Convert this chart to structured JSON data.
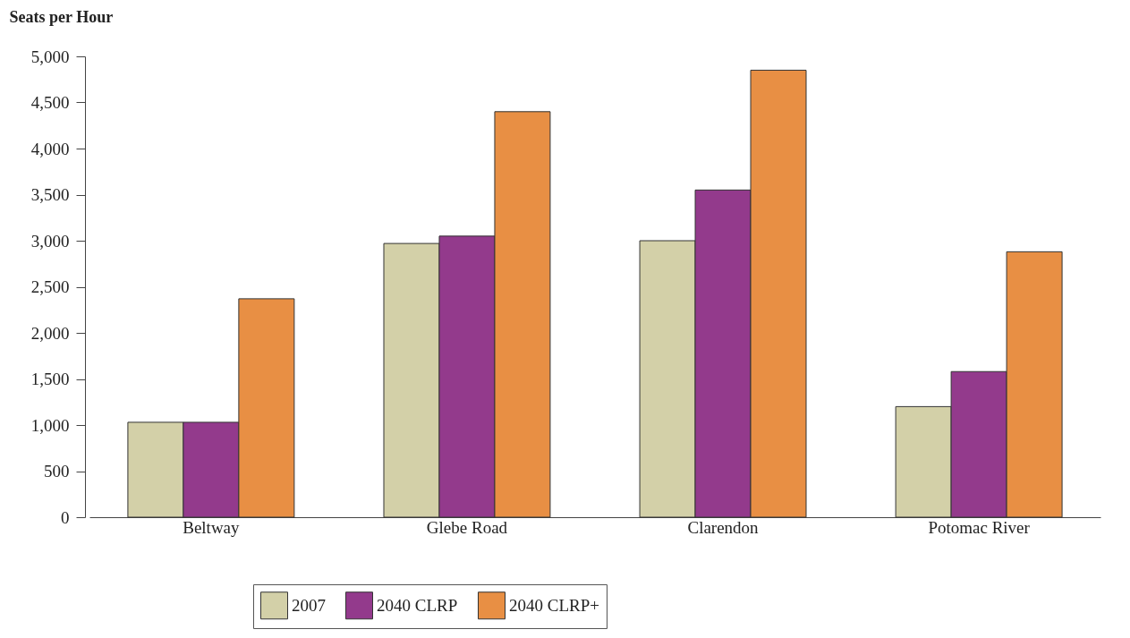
{
  "chart_data": {
    "type": "bar",
    "ylabel": "Seats per Hour",
    "categories": [
      "Beltway",
      "Glebe Road",
      "Clarendon",
      "Potomac River"
    ],
    "series": [
      {
        "name": "2007",
        "color": "#d3d0a8",
        "values": [
          1030,
          2970,
          3000,
          1200
        ]
      },
      {
        "name": "2040 CLRP",
        "color": "#933a8c",
        "values": [
          1030,
          3050,
          3550,
          1580
        ]
      },
      {
        "name": "2040 CLRP+",
        "color": "#e88f44",
        "values": [
          2370,
          4400,
          4850,
          2880
        ]
      }
    ],
    "ylim": [
      0,
      5000
    ],
    "yticks": [
      0,
      500,
      {
        "value": 1000,
        "label": "1,000"
      },
      {
        "value": 1500,
        "label": "1,500"
      },
      {
        "value": 2000,
        "label": "2,000"
      },
      {
        "value": 2500,
        "label": "2,500"
      },
      {
        "value": 3000,
        "label": "3,000"
      },
      {
        "value": 3500,
        "label": "3,500"
      },
      {
        "value": 4000,
        "label": "4,000"
      },
      {
        "value": 4500,
        "label": "4,500"
      },
      {
        "value": 5000,
        "label": "5,000"
      }
    ],
    "grid": false,
    "legend": "bottom"
  }
}
